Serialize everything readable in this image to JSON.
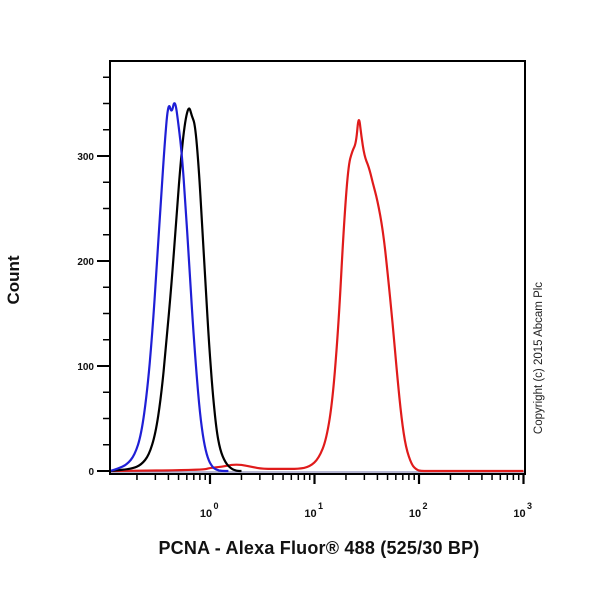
{
  "chart_data": {
    "type": "line",
    "title": "",
    "xlabel": "PCNA - Alexa Fluor® 488 (525/30 BP)",
    "ylabel": "Count",
    "xscale": "log",
    "xlim": [
      0.1,
      1000
    ],
    "ylim": [
      0,
      390
    ],
    "x_ticks": [
      1,
      10,
      100,
      1000
    ],
    "x_tick_labels": [
      "10^0",
      "10^1",
      "10^2",
      "10^3"
    ],
    "y_ticks": [
      0,
      100,
      200,
      300
    ],
    "y_tick_labels": [
      "0",
      "100",
      "200",
      "300"
    ],
    "grid": false,
    "legend": null,
    "annotations": [
      "Copyright (c) 2015 Abcam Plc"
    ],
    "series": [
      {
        "name": "Blue histogram (control)",
        "color": "#1f1fd6",
        "x": [
          0.1,
          0.13,
          0.16,
          0.19,
          0.22,
          0.25,
          0.28,
          0.31,
          0.34,
          0.37,
          0.4,
          0.43,
          0.46,
          0.5,
          0.54,
          0.58,
          0.63,
          0.68,
          0.74,
          0.8,
          0.87,
          0.95,
          1.05,
          1.15,
          1.3,
          1.5
        ],
        "values": [
          0,
          2,
          6,
          15,
          35,
          75,
          130,
          195,
          260,
          315,
          352,
          340,
          355,
          330,
          300,
          255,
          200,
          145,
          95,
          55,
          28,
          12,
          4,
          1,
          0,
          0
        ]
      },
      {
        "name": "Black histogram (control)",
        "color": "#000000",
        "x": [
          0.1,
          0.18,
          0.22,
          0.26,
          0.3,
          0.34,
          0.38,
          0.43,
          0.48,
          0.53,
          0.58,
          0.63,
          0.67,
          0.72,
          0.78,
          0.84,
          0.91,
          0.98,
          1.06,
          1.15,
          1.25,
          1.4,
          1.6,
          1.8,
          2.0
        ],
        "values": [
          0,
          2,
          6,
          15,
          35,
          70,
          120,
          180,
          245,
          300,
          335,
          348,
          338,
          330,
          290,
          235,
          175,
          120,
          75,
          40,
          20,
          8,
          2,
          0,
          0
        ]
      },
      {
        "name": "Red histogram (PCNA)",
        "color": "#e01b1b",
        "x": [
          0.1,
          0.85,
          1.0,
          1.3,
          1.6,
          2.0,
          2.5,
          3.2,
          5,
          7,
          9,
          11,
          13,
          15,
          17,
          19,
          21,
          23,
          25,
          26.5,
          28,
          30,
          33,
          36,
          40,
          45,
          50,
          56,
          62,
          68,
          75,
          85,
          95,
          105,
          120,
          150,
          1000
        ],
        "values": [
          0,
          1,
          3,
          4,
          6,
          6,
          4,
          2,
          2,
          2,
          4,
          12,
          30,
          70,
          140,
          230,
          290,
          305,
          312,
          340,
          320,
          300,
          290,
          275,
          258,
          230,
          190,
          140,
          90,
          50,
          22,
          6,
          1,
          0,
          0,
          0,
          0
        ]
      }
    ]
  },
  "labels": {
    "ylabel": "Count",
    "xlabel": "PCNA - Alexa Fluor® 488 (525/30 BP)",
    "copyright": "Copyright (c) 2015 Abcam Plc"
  }
}
